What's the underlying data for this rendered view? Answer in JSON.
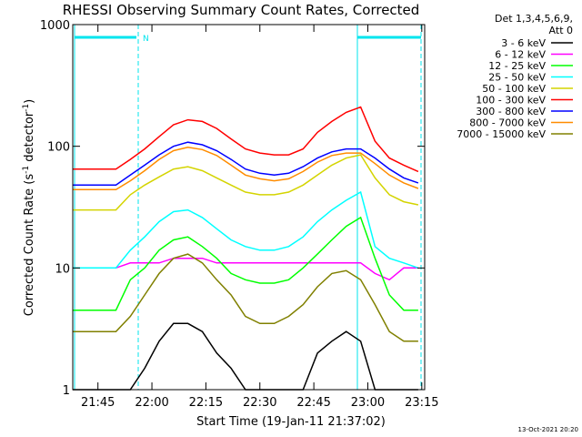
{
  "chart_data": {
    "type": "line",
    "title": "RHESSI Observing Summary Count Rates, Corrected",
    "x_label": "Start Time (19-Jan-11 21:37:02)",
    "y_label": [
      "Corrected Count Rate (s",
      "-1",
      " detector",
      "-1",
      ")"
    ],
    "legend_header": [
      "Det 1,3,4,5,6,9,",
      "Att 0"
    ],
    "footer": "13-Oct-2021 20:20",
    "annotation": "N",
    "log_y": true,
    "legend": "right",
    "xlim": [
      38,
      135.8
    ],
    "xticks": [
      {
        "value": 45,
        "label": "21:45"
      },
      {
        "value": 60,
        "label": "22:00"
      },
      {
        "value": 75,
        "label": "22:15"
      },
      {
        "value": 90,
        "label": "22:30"
      },
      {
        "value": 105,
        "label": "22:45"
      },
      {
        "value": 120,
        "label": "23:00"
      },
      {
        "value": 135,
        "label": "23:15"
      }
    ],
    "ylim": [
      1,
      1000
    ],
    "yticks": [
      1,
      10,
      100,
      1000
    ],
    "x": [
      38,
      42,
      46,
      50,
      54,
      58,
      62,
      66,
      70,
      74,
      78,
      82,
      86,
      90,
      94,
      98,
      102,
      106,
      110,
      114,
      118,
      122,
      126,
      130,
      134
    ],
    "series": [
      {
        "name": "3 - 6 keV",
        "color": "#000000",
        "values": [
          1,
          1,
          1,
          1,
          1,
          1.5,
          2.5,
          3.5,
          3.5,
          3,
          2,
          1.5,
          1,
          1,
          1,
          1,
          1,
          2,
          2.5,
          3,
          2.5,
          1,
          1,
          1,
          1
        ]
      },
      {
        "name": "6 - 12 keV",
        "color": "#ff00ff",
        "values": [
          10,
          10,
          10,
          10,
          11,
          11,
          11,
          12,
          12,
          12,
          11,
          11,
          11,
          11,
          11,
          11,
          11,
          11,
          11,
          11,
          11,
          9,
          8,
          10,
          10
        ]
      },
      {
        "name": "12 - 25 keV",
        "color": "#00ff00",
        "values": [
          4.5,
          4.5,
          4.5,
          4.5,
          8,
          10,
          14,
          17,
          18,
          15,
          12,
          9,
          8,
          7.5,
          7.5,
          8,
          10,
          13,
          17,
          22,
          26,
          12,
          6,
          4.5,
          4.5
        ]
      },
      {
        "name": "25 - 50 keV",
        "color": "#00ffff",
        "values": [
          10,
          10,
          10,
          10,
          14,
          18,
          24,
          29,
          30,
          26,
          21,
          17,
          15,
          14,
          14,
          15,
          18,
          24,
          30,
          36,
          42,
          15,
          12,
          11,
          10
        ]
      },
      {
        "name": "50 - 100 keV",
        "color": "#d4d400",
        "values": [
          30,
          30,
          30,
          30,
          40,
          48,
          56,
          65,
          68,
          63,
          55,
          48,
          42,
          40,
          40,
          42,
          48,
          58,
          70,
          80,
          85,
          55,
          40,
          35,
          33
        ]
      },
      {
        "name": "100 - 300 keV",
        "color": "#ff0000",
        "values": [
          65,
          65,
          65,
          65,
          78,
          95,
          120,
          150,
          165,
          160,
          140,
          115,
          95,
          88,
          85,
          85,
          95,
          130,
          160,
          190,
          210,
          110,
          80,
          70,
          62
        ]
      },
      {
        "name": "300 - 800 keV",
        "color": "#0000ff",
        "values": [
          48,
          48,
          48,
          48,
          58,
          70,
          85,
          100,
          108,
          103,
          92,
          78,
          65,
          60,
          58,
          60,
          68,
          80,
          90,
          95,
          95,
          80,
          65,
          55,
          50
        ]
      },
      {
        "name": "800 - 7000 keV",
        "color": "#ff8c00",
        "values": [
          44,
          44,
          44,
          44,
          52,
          63,
          78,
          92,
          98,
          94,
          84,
          70,
          58,
          54,
          52,
          54,
          62,
          74,
          84,
          88,
          88,
          72,
          58,
          50,
          45
        ]
      },
      {
        "name": "7000 - 15000 keV",
        "color": "#808000",
        "values": [
          3,
          3,
          3,
          3,
          4,
          6,
          9,
          12,
          13,
          11,
          8,
          6,
          4,
          3.5,
          3.5,
          4,
          5,
          7,
          9,
          9.5,
          8,
          5,
          3,
          2.5,
          2.5
        ]
      }
    ]
  }
}
